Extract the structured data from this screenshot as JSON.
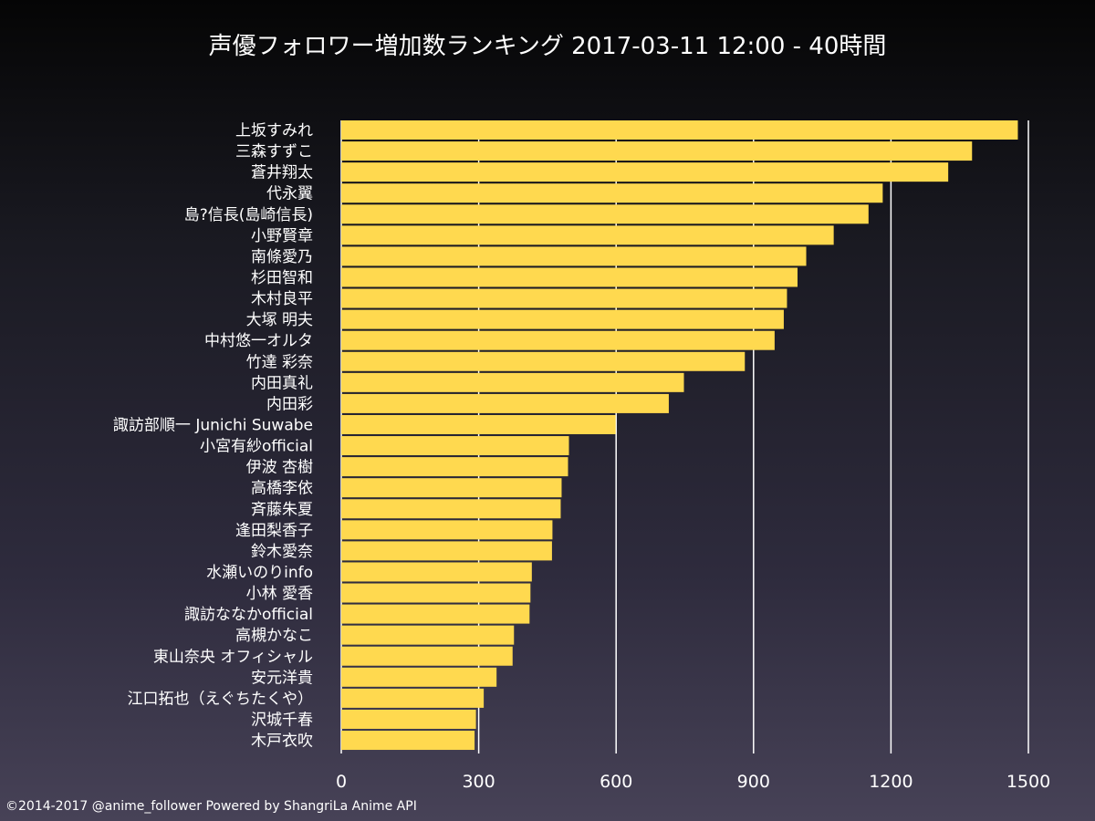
{
  "chart_data": {
    "type": "bar",
    "orientation": "horizontal",
    "title": "声優フォロワー増加数ランキング 2017-03-11 12:00 - 40時間",
    "categories": [
      "上坂すみれ",
      "三森すずこ",
      "蒼井翔太",
      "代永翼",
      "島?信長(島崎信長)",
      "小野賢章",
      "南條愛乃",
      "杉田智和",
      "木村良平",
      "大塚 明夫",
      "中村悠一オルタ",
      "竹達 彩奈",
      "内田真礼",
      "内田彩",
      "諏訪部順一 Junichi Suwabe",
      "小宮有紗official",
      "伊波 杏樹",
      "高橋李依",
      "斉藤朱夏",
      "逢田梨香子",
      "鈴木愛奈",
      "水瀬いのりinfo",
      "小林 愛香",
      "諏訪ななかofficial",
      "高槻かなこ",
      "東山奈央 オフィシャル",
      "安元洋貴",
      "江口拓也（えぐちたくや）",
      "沢城千春",
      "木戸衣吹"
    ],
    "values": [
      1477,
      1377,
      1325,
      1182,
      1151,
      1075,
      1015,
      996,
      973,
      966,
      946,
      881,
      748,
      715,
      599,
      497,
      495,
      481,
      479,
      461,
      460,
      416,
      413,
      411,
      377,
      374,
      339,
      311,
      294,
      291
    ],
    "xlim": [
      0,
      1500
    ],
    "xticks": [
      0,
      300,
      600,
      900,
      1200,
      1500
    ],
    "grid": true,
    "bar_color": "#ffd94f",
    "grid_color": "#ffffff"
  },
  "footer": {
    "credit": "©2014-2017 @anime_follower Powered by ShangriLa Anime API"
  }
}
